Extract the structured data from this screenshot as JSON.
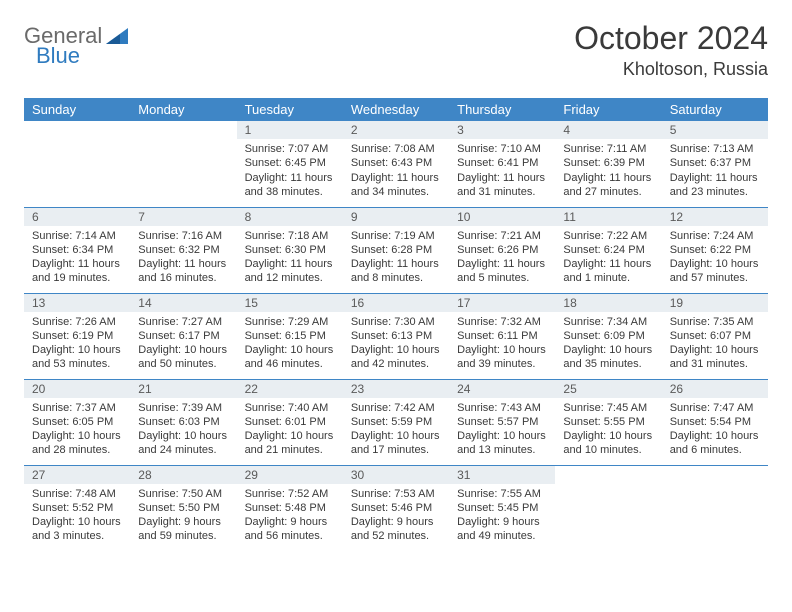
{
  "logo": {
    "text1": "General",
    "text2": "Blue"
  },
  "title": "October 2024",
  "subtitle": "Kholtoson, Russia",
  "colors": {
    "header_bg": "#3f86c6",
    "header_text": "#ffffff",
    "daynum_bg": "#e9eef2",
    "border": "#3f86c6",
    "text": "#3a3a3a",
    "logo_gray": "#6a6a6a",
    "logo_blue": "#2f7bbf"
  },
  "day_headers": [
    "Sunday",
    "Monday",
    "Tuesday",
    "Wednesday",
    "Thursday",
    "Friday",
    "Saturday"
  ],
  "weeks": [
    [
      null,
      null,
      {
        "n": "1",
        "sr": "7:07 AM",
        "ss": "6:45 PM",
        "dl": "11 hours and 38 minutes."
      },
      {
        "n": "2",
        "sr": "7:08 AM",
        "ss": "6:43 PM",
        "dl": "11 hours and 34 minutes."
      },
      {
        "n": "3",
        "sr": "7:10 AM",
        "ss": "6:41 PM",
        "dl": "11 hours and 31 minutes."
      },
      {
        "n": "4",
        "sr": "7:11 AM",
        "ss": "6:39 PM",
        "dl": "11 hours and 27 minutes."
      },
      {
        "n": "5",
        "sr": "7:13 AM",
        "ss": "6:37 PM",
        "dl": "11 hours and 23 minutes."
      }
    ],
    [
      {
        "n": "6",
        "sr": "7:14 AM",
        "ss": "6:34 PM",
        "dl": "11 hours and 19 minutes."
      },
      {
        "n": "7",
        "sr": "7:16 AM",
        "ss": "6:32 PM",
        "dl": "11 hours and 16 minutes."
      },
      {
        "n": "8",
        "sr": "7:18 AM",
        "ss": "6:30 PM",
        "dl": "11 hours and 12 minutes."
      },
      {
        "n": "9",
        "sr": "7:19 AM",
        "ss": "6:28 PM",
        "dl": "11 hours and 8 minutes."
      },
      {
        "n": "10",
        "sr": "7:21 AM",
        "ss": "6:26 PM",
        "dl": "11 hours and 5 minutes."
      },
      {
        "n": "11",
        "sr": "7:22 AM",
        "ss": "6:24 PM",
        "dl": "11 hours and 1 minute."
      },
      {
        "n": "12",
        "sr": "7:24 AM",
        "ss": "6:22 PM",
        "dl": "10 hours and 57 minutes."
      }
    ],
    [
      {
        "n": "13",
        "sr": "7:26 AM",
        "ss": "6:19 PM",
        "dl": "10 hours and 53 minutes."
      },
      {
        "n": "14",
        "sr": "7:27 AM",
        "ss": "6:17 PM",
        "dl": "10 hours and 50 minutes."
      },
      {
        "n": "15",
        "sr": "7:29 AM",
        "ss": "6:15 PM",
        "dl": "10 hours and 46 minutes."
      },
      {
        "n": "16",
        "sr": "7:30 AM",
        "ss": "6:13 PM",
        "dl": "10 hours and 42 minutes."
      },
      {
        "n": "17",
        "sr": "7:32 AM",
        "ss": "6:11 PM",
        "dl": "10 hours and 39 minutes."
      },
      {
        "n": "18",
        "sr": "7:34 AM",
        "ss": "6:09 PM",
        "dl": "10 hours and 35 minutes."
      },
      {
        "n": "19",
        "sr": "7:35 AM",
        "ss": "6:07 PM",
        "dl": "10 hours and 31 minutes."
      }
    ],
    [
      {
        "n": "20",
        "sr": "7:37 AM",
        "ss": "6:05 PM",
        "dl": "10 hours and 28 minutes."
      },
      {
        "n": "21",
        "sr": "7:39 AM",
        "ss": "6:03 PM",
        "dl": "10 hours and 24 minutes."
      },
      {
        "n": "22",
        "sr": "7:40 AM",
        "ss": "6:01 PM",
        "dl": "10 hours and 21 minutes."
      },
      {
        "n": "23",
        "sr": "7:42 AM",
        "ss": "5:59 PM",
        "dl": "10 hours and 17 minutes."
      },
      {
        "n": "24",
        "sr": "7:43 AM",
        "ss": "5:57 PM",
        "dl": "10 hours and 13 minutes."
      },
      {
        "n": "25",
        "sr": "7:45 AM",
        "ss": "5:55 PM",
        "dl": "10 hours and 10 minutes."
      },
      {
        "n": "26",
        "sr": "7:47 AM",
        "ss": "5:54 PM",
        "dl": "10 hours and 6 minutes."
      }
    ],
    [
      {
        "n": "27",
        "sr": "7:48 AM",
        "ss": "5:52 PM",
        "dl": "10 hours and 3 minutes."
      },
      {
        "n": "28",
        "sr": "7:50 AM",
        "ss": "5:50 PM",
        "dl": "9 hours and 59 minutes."
      },
      {
        "n": "29",
        "sr": "7:52 AM",
        "ss": "5:48 PM",
        "dl": "9 hours and 56 minutes."
      },
      {
        "n": "30",
        "sr": "7:53 AM",
        "ss": "5:46 PM",
        "dl": "9 hours and 52 minutes."
      },
      {
        "n": "31",
        "sr": "7:55 AM",
        "ss": "5:45 PM",
        "dl": "9 hours and 49 minutes."
      },
      null,
      null
    ]
  ],
  "labels": {
    "sunrise": "Sunrise:",
    "sunset": "Sunset:",
    "daylight": "Daylight:"
  }
}
